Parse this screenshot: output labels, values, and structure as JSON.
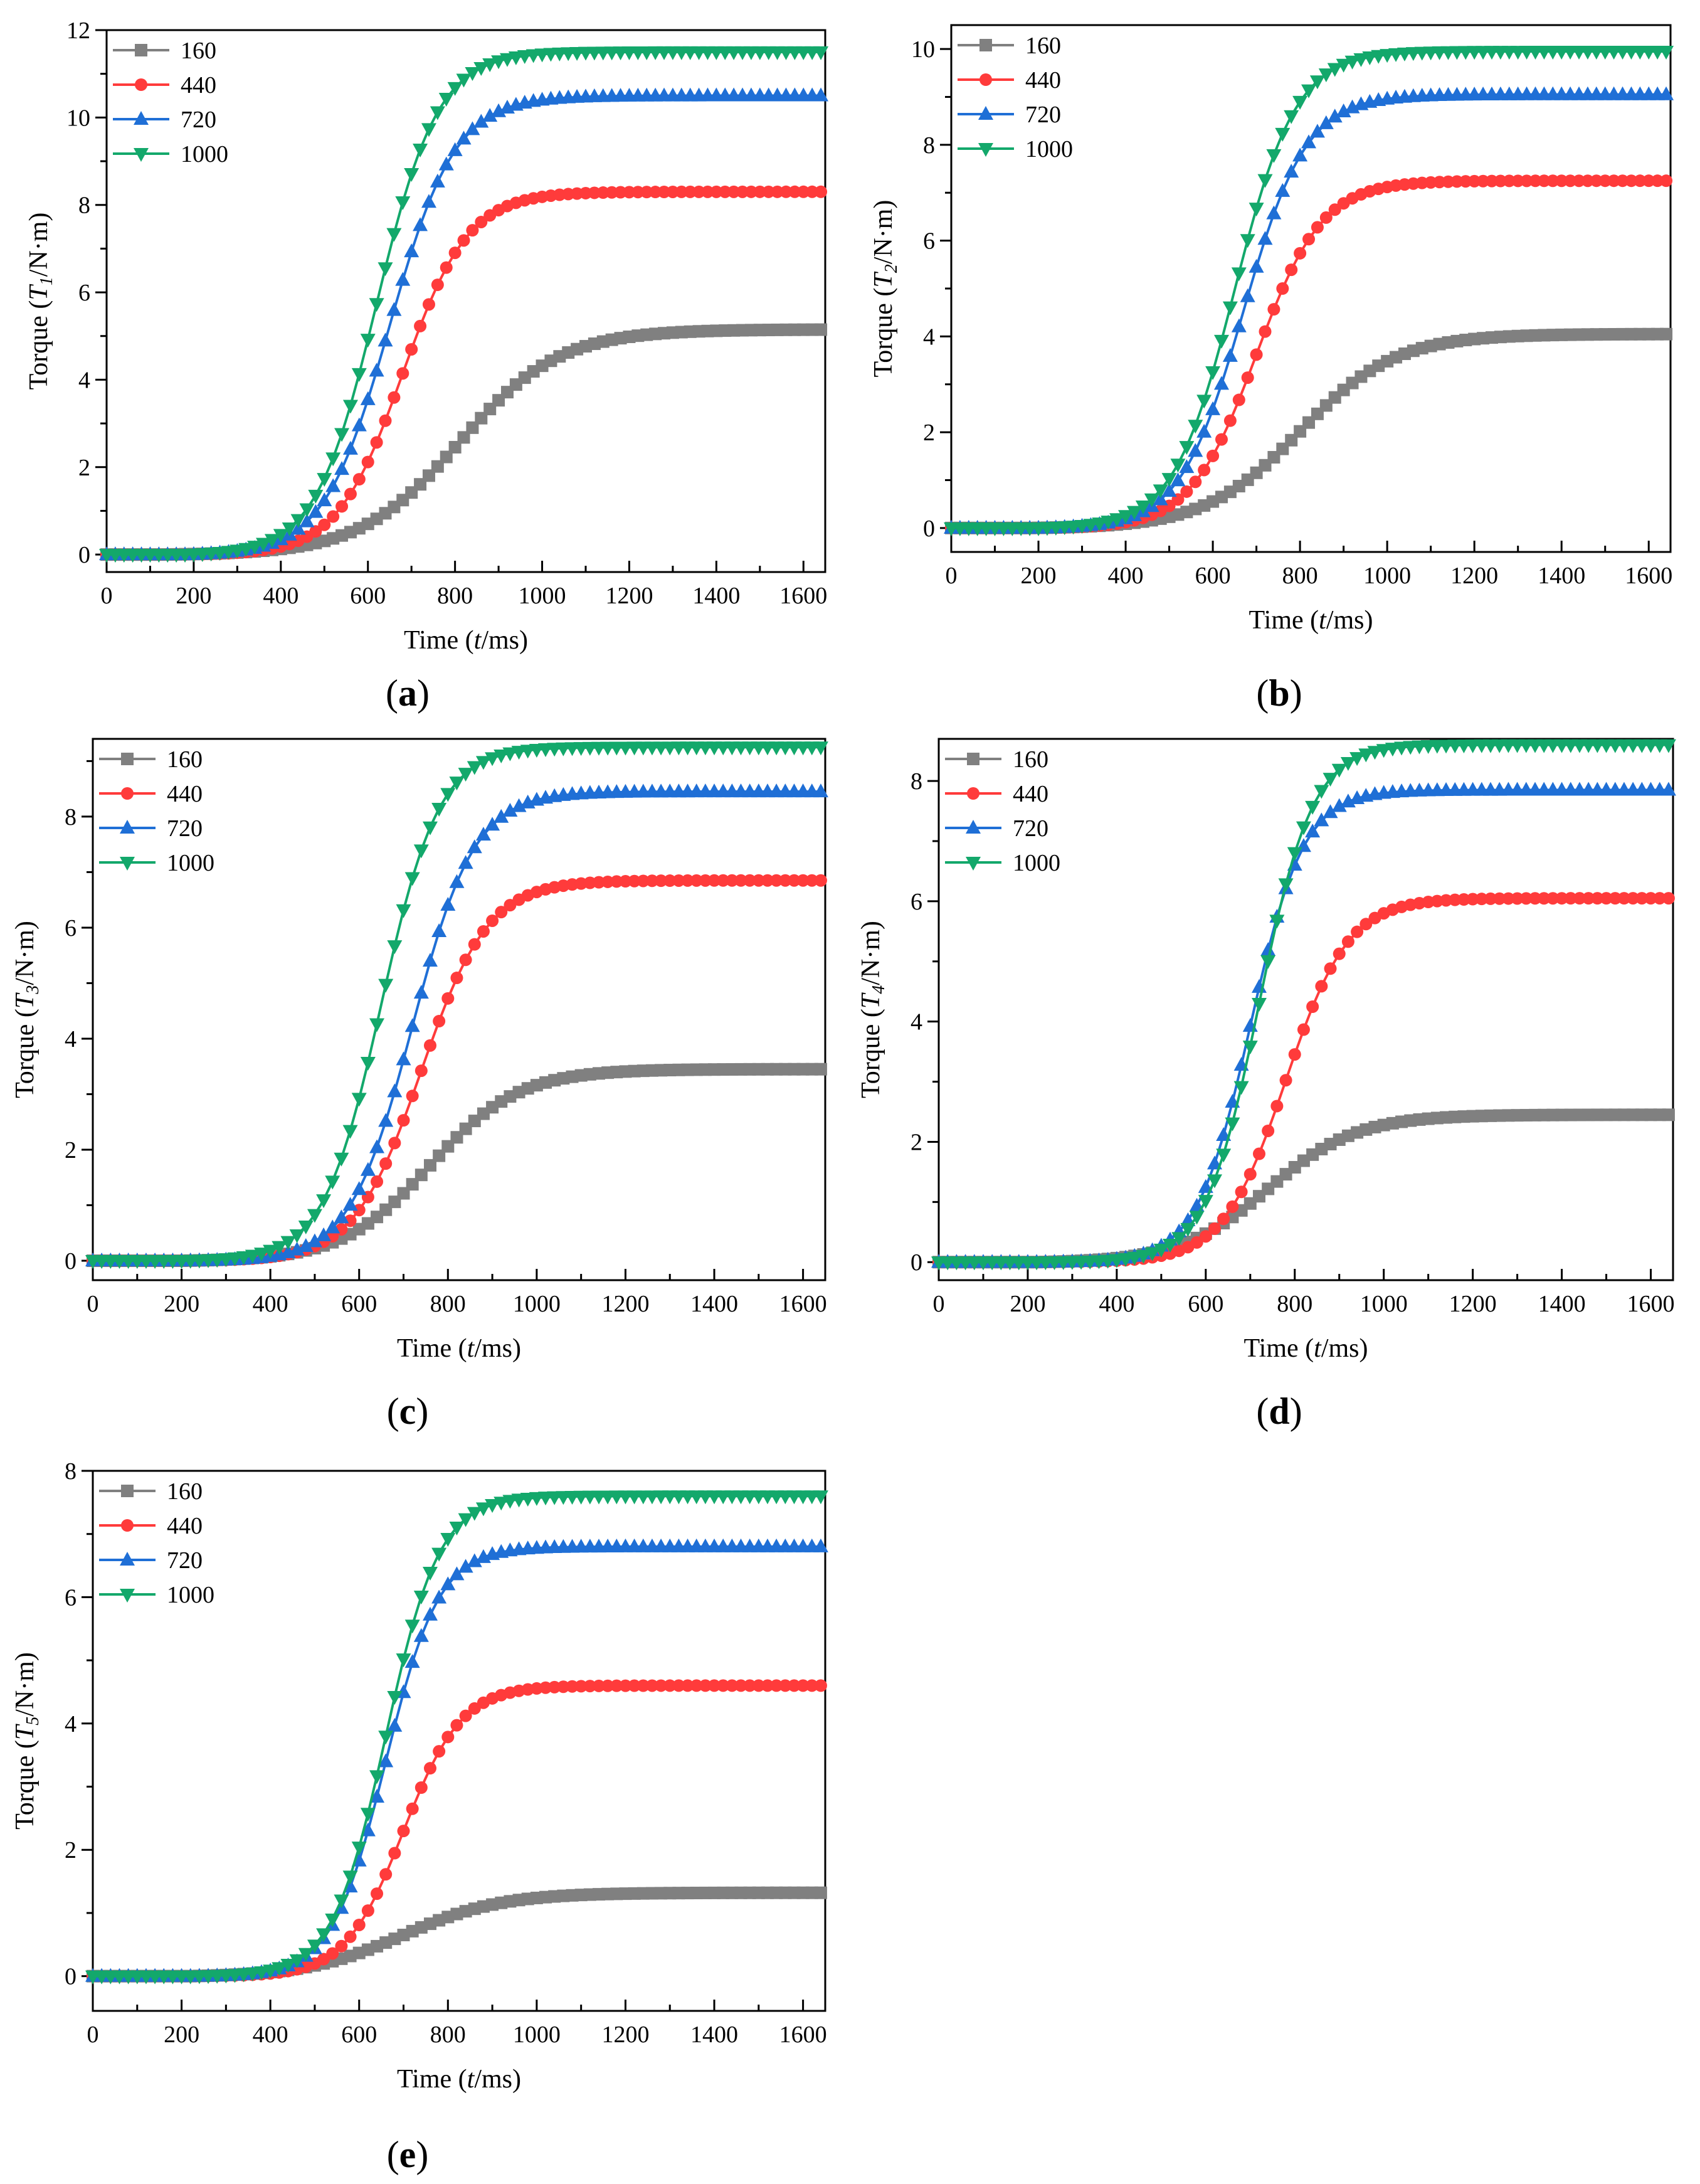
{
  "colors": {
    "s160": "#808080",
    "s440": "#ff3b3b",
    "s720": "#1f6fd6",
    "s1000": "#13a86b"
  },
  "chart_data": [
    {
      "type": "line",
      "panel_label": "(a)",
      "ylabel_prefix": "Torque (",
      "ylabel_var": "T",
      "ylabel_sub": "1",
      "ylabel_suffix": "/N·m)",
      "xlabel_prefix": "Time (",
      "xlabel_var": "t",
      "xlabel_suffix": "/ms)",
      "xlim": [
        0,
        1650
      ],
      "ylim": [
        -0.4,
        12
      ],
      "xticks": [
        "0",
        "200",
        "400",
        "600",
        "800",
        "1000",
        "1200",
        "1400",
        "1600"
      ],
      "yticks": [
        "0",
        "2",
        "4",
        "6",
        "8",
        "10",
        "12"
      ],
      "ytick_step": 2,
      "legend": [
        "160",
        "440",
        "720",
        "1000"
      ],
      "series": [
        {
          "name": "160",
          "plateau": 5.15,
          "midpoint": 810,
          "width": 115,
          "start": 130
        },
        {
          "name": "440",
          "plateau": 8.3,
          "midpoint": 680,
          "width": 75,
          "start": 180
        },
        {
          "name": "720",
          "plateau": 10.5,
          "midpoint": 650,
          "width": 75,
          "start": 180
        },
        {
          "name": "1000",
          "plateau": 11.5,
          "midpoint": 620,
          "width": 70,
          "start": 180
        }
      ]
    },
    {
      "type": "line",
      "panel_label": "(b)",
      "ylabel_prefix": "Torque (",
      "ylabel_var": "T",
      "ylabel_sub": "2",
      "ylabel_suffix": "/N·m)",
      "xlabel_prefix": "Time (",
      "xlabel_var": "t",
      "xlabel_suffix": "/ms)",
      "xlim": [
        0,
        1650
      ],
      "ylim": [
        -0.5,
        10.5
      ],
      "xticks": [
        "0",
        "200",
        "400",
        "600",
        "800",
        "1000",
        "1200",
        "1400",
        "1600"
      ],
      "yticks": [
        "0",
        "2",
        "4",
        "6",
        "8",
        "10"
      ],
      "ytick_step": 2,
      "legend": [
        "160",
        "440",
        "720",
        "1000"
      ],
      "series": [
        {
          "name": "160",
          "plateau": 4.05,
          "midpoint": 800,
          "width": 110,
          "start": 180
        },
        {
          "name": "440",
          "plateau": 7.25,
          "midpoint": 700,
          "width": 75,
          "start": 200
        },
        {
          "name": "720",
          "plateau": 9.05,
          "midpoint": 670,
          "width": 72,
          "start": 200
        },
        {
          "name": "1000",
          "plateau": 9.95,
          "midpoint": 650,
          "width": 70,
          "start": 200
        }
      ]
    },
    {
      "type": "line",
      "panel_label": "(c)",
      "ylabel_prefix": "Torque (",
      "ylabel_var": "T",
      "ylabel_sub": "3",
      "ylabel_suffix": "/N·m)",
      "xlabel_prefix": "Time (",
      "xlabel_var": "t",
      "xlabel_suffix": "/ms)",
      "xlim": [
        0,
        1650
      ],
      "ylim": [
        -0.35,
        9.4
      ],
      "xticks": [
        "0",
        "200",
        "400",
        "600",
        "800",
        "1000",
        "1200",
        "1400",
        "1600"
      ],
      "yticks": [
        "0",
        "2",
        "4",
        "6",
        "8"
      ],
      "ytick_step": 2,
      "legend": [
        "160",
        "440",
        "720",
        "1000"
      ],
      "series": [
        {
          "name": "160",
          "plateau": 3.45,
          "midpoint": 760,
          "width": 100,
          "start": 200
        },
        {
          "name": "440",
          "plateau": 6.85,
          "midpoint": 740,
          "width": 75,
          "start": 200
        },
        {
          "name": "720",
          "plateau": 8.45,
          "midpoint": 720,
          "width": 70,
          "start": 200
        },
        {
          "name": "1000",
          "plateau": 9.25,
          "midpoint": 650,
          "width": 65,
          "start": 200
        }
      ]
    },
    {
      "type": "line",
      "panel_label": "(d)",
      "ylabel_prefix": "Torque (",
      "ylabel_var": "T",
      "ylabel_sub": "4",
      "ylabel_suffix": "/N·m)",
      "xlabel_prefix": "Time (",
      "xlabel_var": "t",
      "xlabel_suffix": "/ms)",
      "xlim": [
        0,
        1650
      ],
      "ylim": [
        -0.3,
        8.7
      ],
      "xticks": [
        "0",
        "200",
        "400",
        "600",
        "800",
        "1000",
        "1200",
        "1400",
        "1600"
      ],
      "yticks": [
        "0",
        "2",
        "4",
        "6",
        "8"
      ],
      "ytick_step": 2,
      "legend": [
        "160",
        "440",
        "720",
        "1000"
      ],
      "series": [
        {
          "name": "160",
          "plateau": 2.45,
          "midpoint": 740,
          "width": 100,
          "start": 220
        },
        {
          "name": "440",
          "plateau": 6.05,
          "midpoint": 780,
          "width": 70,
          "start": 220
        },
        {
          "name": "720",
          "plateau": 7.85,
          "midpoint": 700,
          "width": 60,
          "start": 220
        },
        {
          "name": "1000",
          "plateau": 8.6,
          "midpoint": 720,
          "width": 60,
          "start": 220
        }
      ]
    },
    {
      "type": "line",
      "panel_label": "(e)",
      "ylabel_prefix": "Torque (",
      "ylabel_var": "T",
      "ylabel_sub": "5",
      "ylabel_suffix": "/N·m)",
      "xlabel_prefix": "Time (",
      "xlabel_var": "t",
      "xlabel_suffix": "/ms)",
      "xlim": [
        0,
        1650
      ],
      "ylim": [
        -0.55,
        8
      ],
      "xticks": [
        "0",
        "200",
        "400",
        "600",
        "800",
        "1000",
        "1200",
        "1400",
        "1600"
      ],
      "yticks": [
        "0",
        "2",
        "4",
        "6",
        "8"
      ],
      "ytick_step": 2,
      "legend": [
        "160",
        "440",
        "720",
        "1000"
      ],
      "series": [
        {
          "name": "160",
          "plateau": 1.32,
          "midpoint": 700,
          "width": 110,
          "start": 220
        },
        {
          "name": "440",
          "plateau": 4.6,
          "midpoint": 700,
          "width": 65,
          "start": 220
        },
        {
          "name": "720",
          "plateau": 6.8,
          "midpoint": 660,
          "width": 60,
          "start": 220
        },
        {
          "name": "1000",
          "plateau": 7.6,
          "midpoint": 660,
          "width": 60,
          "start": 220
        }
      ]
    }
  ]
}
